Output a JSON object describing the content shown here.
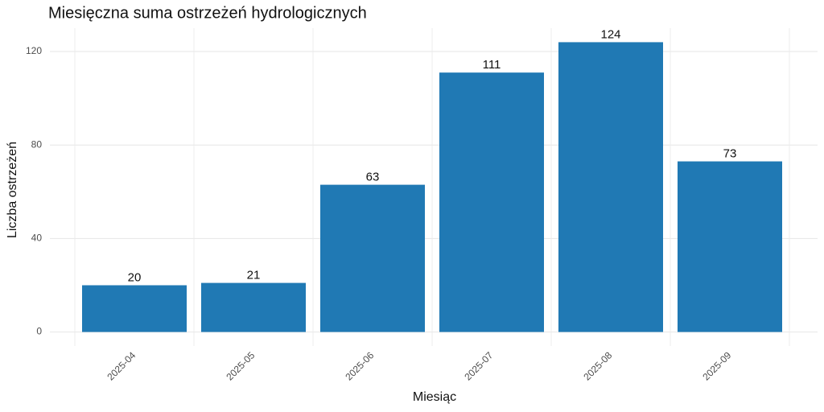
{
  "chart_data": {
    "type": "bar",
    "title": "Miesięczna suma ostrzeżeń hydrologicznych",
    "x_label": "Miesiąc",
    "y_label": "Liczba ostrzeżeń",
    "categories": [
      "2025-04",
      "2025-05",
      "2025-06",
      "2025-07",
      "2025-08",
      "2025-09"
    ],
    "values": [
      20,
      21,
      63,
      111,
      124,
      73
    ],
    "color": "#2079b4",
    "ylim": [
      -6,
      130
    ],
    "yticks": [
      0,
      40,
      80,
      120
    ],
    "grid": true
  }
}
